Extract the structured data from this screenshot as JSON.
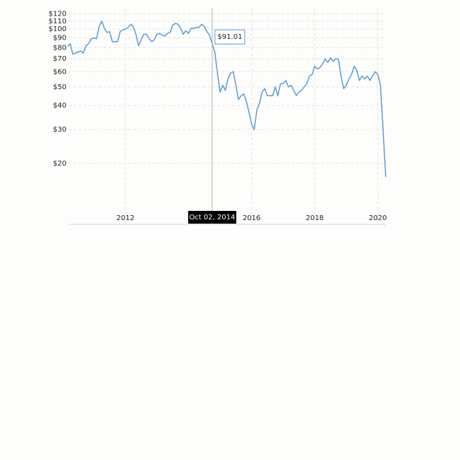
{
  "chart_data": {
    "type": "line",
    "log_y": true,
    "grid": true,
    "x": [
      2010.167,
      2010.25,
      2010.333,
      2010.417,
      2010.5,
      2010.583,
      2010.667,
      2010.75,
      2010.833,
      2010.917,
      2011.0,
      2011.083,
      2011.167,
      2011.25,
      2011.333,
      2011.417,
      2011.5,
      2011.583,
      2011.667,
      2011.75,
      2011.833,
      2011.917,
      2012.0,
      2012.083,
      2012.167,
      2012.25,
      2012.333,
      2012.417,
      2012.5,
      2012.583,
      2012.667,
      2012.75,
      2012.833,
      2012.917,
      2013.0,
      2013.083,
      2013.167,
      2013.25,
      2013.333,
      2013.417,
      2013.5,
      2013.583,
      2013.667,
      2013.75,
      2013.833,
      2013.917,
      2014.0,
      2014.083,
      2014.167,
      2014.25,
      2014.333,
      2014.417,
      2014.5,
      2014.583,
      2014.667,
      2014.75,
      2014.833,
      2014.917,
      2015.0,
      2015.083,
      2015.167,
      2015.25,
      2015.333,
      2015.417,
      2015.5,
      2015.583,
      2015.667,
      2015.75,
      2015.833,
      2015.917,
      2016.0,
      2016.083,
      2016.167,
      2016.25,
      2016.333,
      2016.417,
      2016.5,
      2016.583,
      2016.667,
      2016.75,
      2016.833,
      2016.917,
      2017.0,
      2017.083,
      2017.167,
      2017.25,
      2017.333,
      2017.417,
      2017.5,
      2017.583,
      2017.667,
      2017.75,
      2017.833,
      2017.917,
      2018.0,
      2018.083,
      2018.167,
      2018.25,
      2018.333,
      2018.417,
      2018.5,
      2018.583,
      2018.667,
      2018.75,
      2018.833,
      2018.917,
      2019.0,
      2019.083,
      2019.167,
      2019.25,
      2019.333,
      2019.417,
      2019.5,
      2019.583,
      2019.667,
      2019.75,
      2019.833,
      2019.917,
      2020.0,
      2020.083,
      2020.167,
      2020.25
    ],
    "series": [
      {
        "color": "#5b9bd5",
        "values": [
          81,
          84,
          74,
          75,
          76,
          77,
          75,
          82,
          84,
          89,
          90,
          89,
          103,
          110,
          101,
          96,
          97,
          86,
          86,
          86,
          97,
          99,
          100,
          102,
          106,
          103,
          94,
          82,
          88,
          94,
          94,
          89,
          86,
          88,
          94,
          95,
          93,
          92,
          95,
          96,
          105,
          107,
          106,
          101,
          94,
          98,
          95,
          101,
          101,
          102,
          102,
          106,
          103,
          97,
          93,
          84,
          76,
          59,
          47,
          51,
          48,
          55,
          59,
          60,
          51,
          43,
          45,
          46,
          42,
          37,
          32,
          30,
          38,
          41,
          47,
          49,
          45,
          45,
          45,
          50,
          45,
          52,
          52,
          54,
          50,
          51,
          48,
          45,
          47,
          48,
          50,
          52,
          57,
          58,
          64,
          62,
          63,
          66,
          70,
          67,
          71,
          68,
          70,
          70,
          57,
          49,
          51,
          55,
          58,
          64,
          61,
          54,
          57,
          55,
          57,
          54,
          57,
          60,
          58,
          51,
          30,
          17
        ]
      }
    ],
    "xlim": [
      2010.2,
      2020.25
    ],
    "xticks": [
      {
        "value": 2012,
        "label": "2012"
      },
      {
        "value": 2016,
        "label": "2016"
      },
      {
        "value": 2018,
        "label": "2018"
      },
      {
        "value": 2020,
        "label": "2020"
      }
    ],
    "ylim": [
      9.8,
      128
    ],
    "yticks": [
      {
        "value": 20,
        "label": "$20"
      },
      {
        "value": 30,
        "label": "$30"
      },
      {
        "value": 40,
        "label": "$40"
      },
      {
        "value": 50,
        "label": "$50"
      },
      {
        "value": 60,
        "label": "$60"
      },
      {
        "value": 70,
        "label": "$70"
      },
      {
        "value": 80,
        "label": "$80"
      },
      {
        "value": 90,
        "label": "$90"
      },
      {
        "value": 100,
        "label": "$100"
      },
      {
        "value": 110,
        "label": "$110"
      },
      {
        "value": 120,
        "label": "$120"
      }
    ],
    "annotation": {
      "x": 2014.75,
      "label": "Oct 02, 2014",
      "value": 91.01,
      "value_label": "$91.01"
    }
  }
}
